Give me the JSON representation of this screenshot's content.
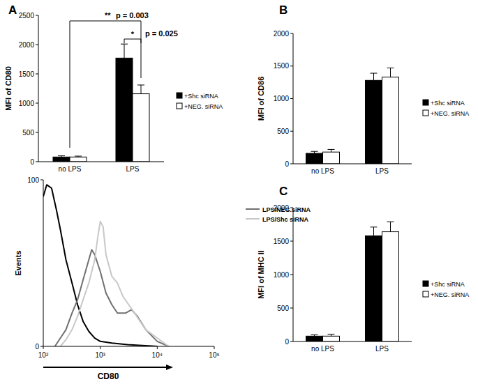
{
  "chart_data": [
    {
      "type": "bar",
      "title": "A",
      "y_label": "MFI of CD80",
      "categories": [
        "no LPS",
        "LPS"
      ],
      "series": [
        {
          "name": "+Shc siRNA",
          "color": "#000000",
          "values": [
            80,
            1770
          ],
          "errors": [
            20,
            240
          ]
        },
        {
          "name": "+NEG. siRNA",
          "color": "#ffffff",
          "values": [
            80,
            1160
          ],
          "errors": [
            15,
            150
          ]
        }
      ],
      "ylim": [
        0,
        2500
      ],
      "yticks": [
        0,
        500,
        1000,
        1500,
        2000,
        2500
      ],
      "legend": "right",
      "annotations": [
        {
          "label": "**",
          "text": "p = 0.003"
        },
        {
          "label": "*",
          "text": "p = 0.025"
        }
      ]
    },
    {
      "type": "line",
      "log": "x",
      "x_label": "CD80",
      "y_label": "Events",
      "xlim": [
        100,
        100000
      ],
      "ylim": [
        0,
        100
      ],
      "xticks": [
        {
          "value": 100,
          "label": "10²"
        },
        {
          "value": 1000,
          "label": "10³"
        },
        {
          "value": 10000,
          "label": "10⁴"
        },
        {
          "value": 100000,
          "label": "10⁵"
        }
      ],
      "yticks": [
        0,
        100
      ],
      "legend": "right",
      "series": [
        {
          "color": "#000000",
          "x": [
            100,
            115,
            140,
            170,
            200,
            250,
            320,
            400,
            500,
            630,
            800,
            1000,
            1600,
            3000,
            10000
          ],
          "values": [
            90,
            97,
            95,
            82,
            70,
            52,
            38,
            25,
            15,
            9,
            5,
            3,
            2,
            1,
            0
          ]
        },
        {
          "name": "LPS/NEG.siRNA",
          "color": "#707070",
          "x": [
            160,
            200,
            250,
            320,
            400,
            500,
            630,
            708,
            800,
            1000,
            1260,
            1600,
            2000,
            2800,
            3550,
            4500,
            6300,
            10000,
            15850
          ],
          "values": [
            0,
            5,
            10,
            20,
            28,
            40,
            52,
            58,
            55,
            45,
            32,
            25,
            20,
            20,
            22,
            18,
            10,
            3,
            0
          ]
        },
        {
          "name": "LPS/Shc siRNA",
          "color": "#c8c8c8",
          "x": [
            200,
            250,
            320,
            400,
            500,
            630,
            800,
            900,
            1000,
            1120,
            1260,
            1600,
            2000,
            2500,
            3160,
            4000,
            5000,
            6300,
            10000,
            15850
          ],
          "values": [
            0,
            4,
            10,
            18,
            28,
            38,
            52,
            65,
            75,
            72,
            55,
            42,
            38,
            30,
            25,
            20,
            15,
            10,
            5,
            0
          ]
        }
      ]
    },
    {
      "type": "bar",
      "title": "B",
      "y_label": "MFI of CD86",
      "categories": [
        "no LPS",
        "LPS"
      ],
      "series": [
        {
          "name": "+Shc siRNA",
          "color": "#000000",
          "values": [
            160,
            1280
          ],
          "errors": [
            30,
            110
          ]
        },
        {
          "name": "+NEG. siRNA",
          "color": "#ffffff",
          "values": [
            180,
            1330
          ],
          "errors": [
            40,
            140
          ]
        }
      ],
      "ylim": [
        0,
        2000
      ],
      "yticks": [
        0,
        500,
        1000,
        1500,
        2000
      ],
      "legend": "right"
    },
    {
      "type": "bar",
      "title": "C",
      "y_label": "MFI of MHC II",
      "categories": [
        "no LPS",
        "LPS"
      ],
      "series": [
        {
          "name": "+Shc siRNA",
          "color": "#000000",
          "values": [
            80,
            1580
          ],
          "errors": [
            20,
            130
          ]
        },
        {
          "name": "+NEG. siRNA",
          "color": "#ffffff",
          "values": [
            80,
            1640
          ],
          "errors": [
            30,
            150
          ]
        }
      ],
      "ylim": [
        0,
        2000
      ],
      "yticks": [
        0,
        500,
        1000,
        1500,
        2000
      ],
      "legend": "right"
    }
  ]
}
